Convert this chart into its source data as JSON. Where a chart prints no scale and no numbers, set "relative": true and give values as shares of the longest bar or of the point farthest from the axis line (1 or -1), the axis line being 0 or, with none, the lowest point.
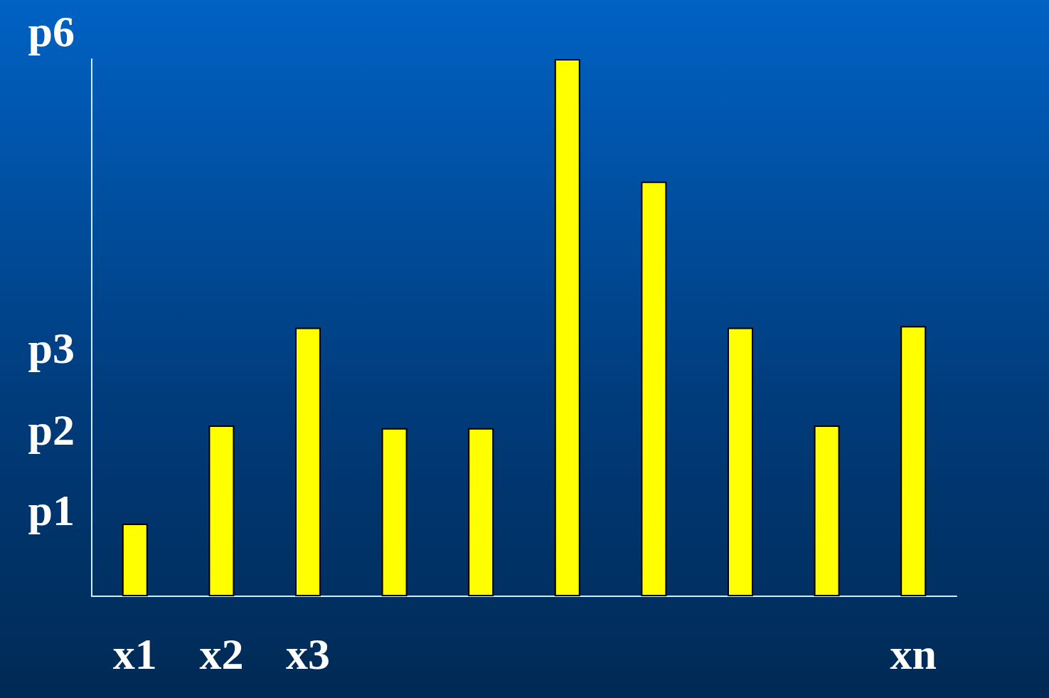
{
  "chart_data": {
    "type": "bar",
    "categories": [
      "x1",
      "x2",
      "x3",
      null,
      null,
      null,
      null,
      null,
      null,
      "xn"
    ],
    "values": [
      0.135,
      0.318,
      0.5,
      0.313,
      0.313,
      1,
      0.772,
      0.5,
      0.318,
      0.503
    ],
    "color": "#ffff00",
    "relative": true,
    "annotations": [
      "p1",
      "p2",
      "p3",
      "p6"
    ],
    "grid": false
  }
}
